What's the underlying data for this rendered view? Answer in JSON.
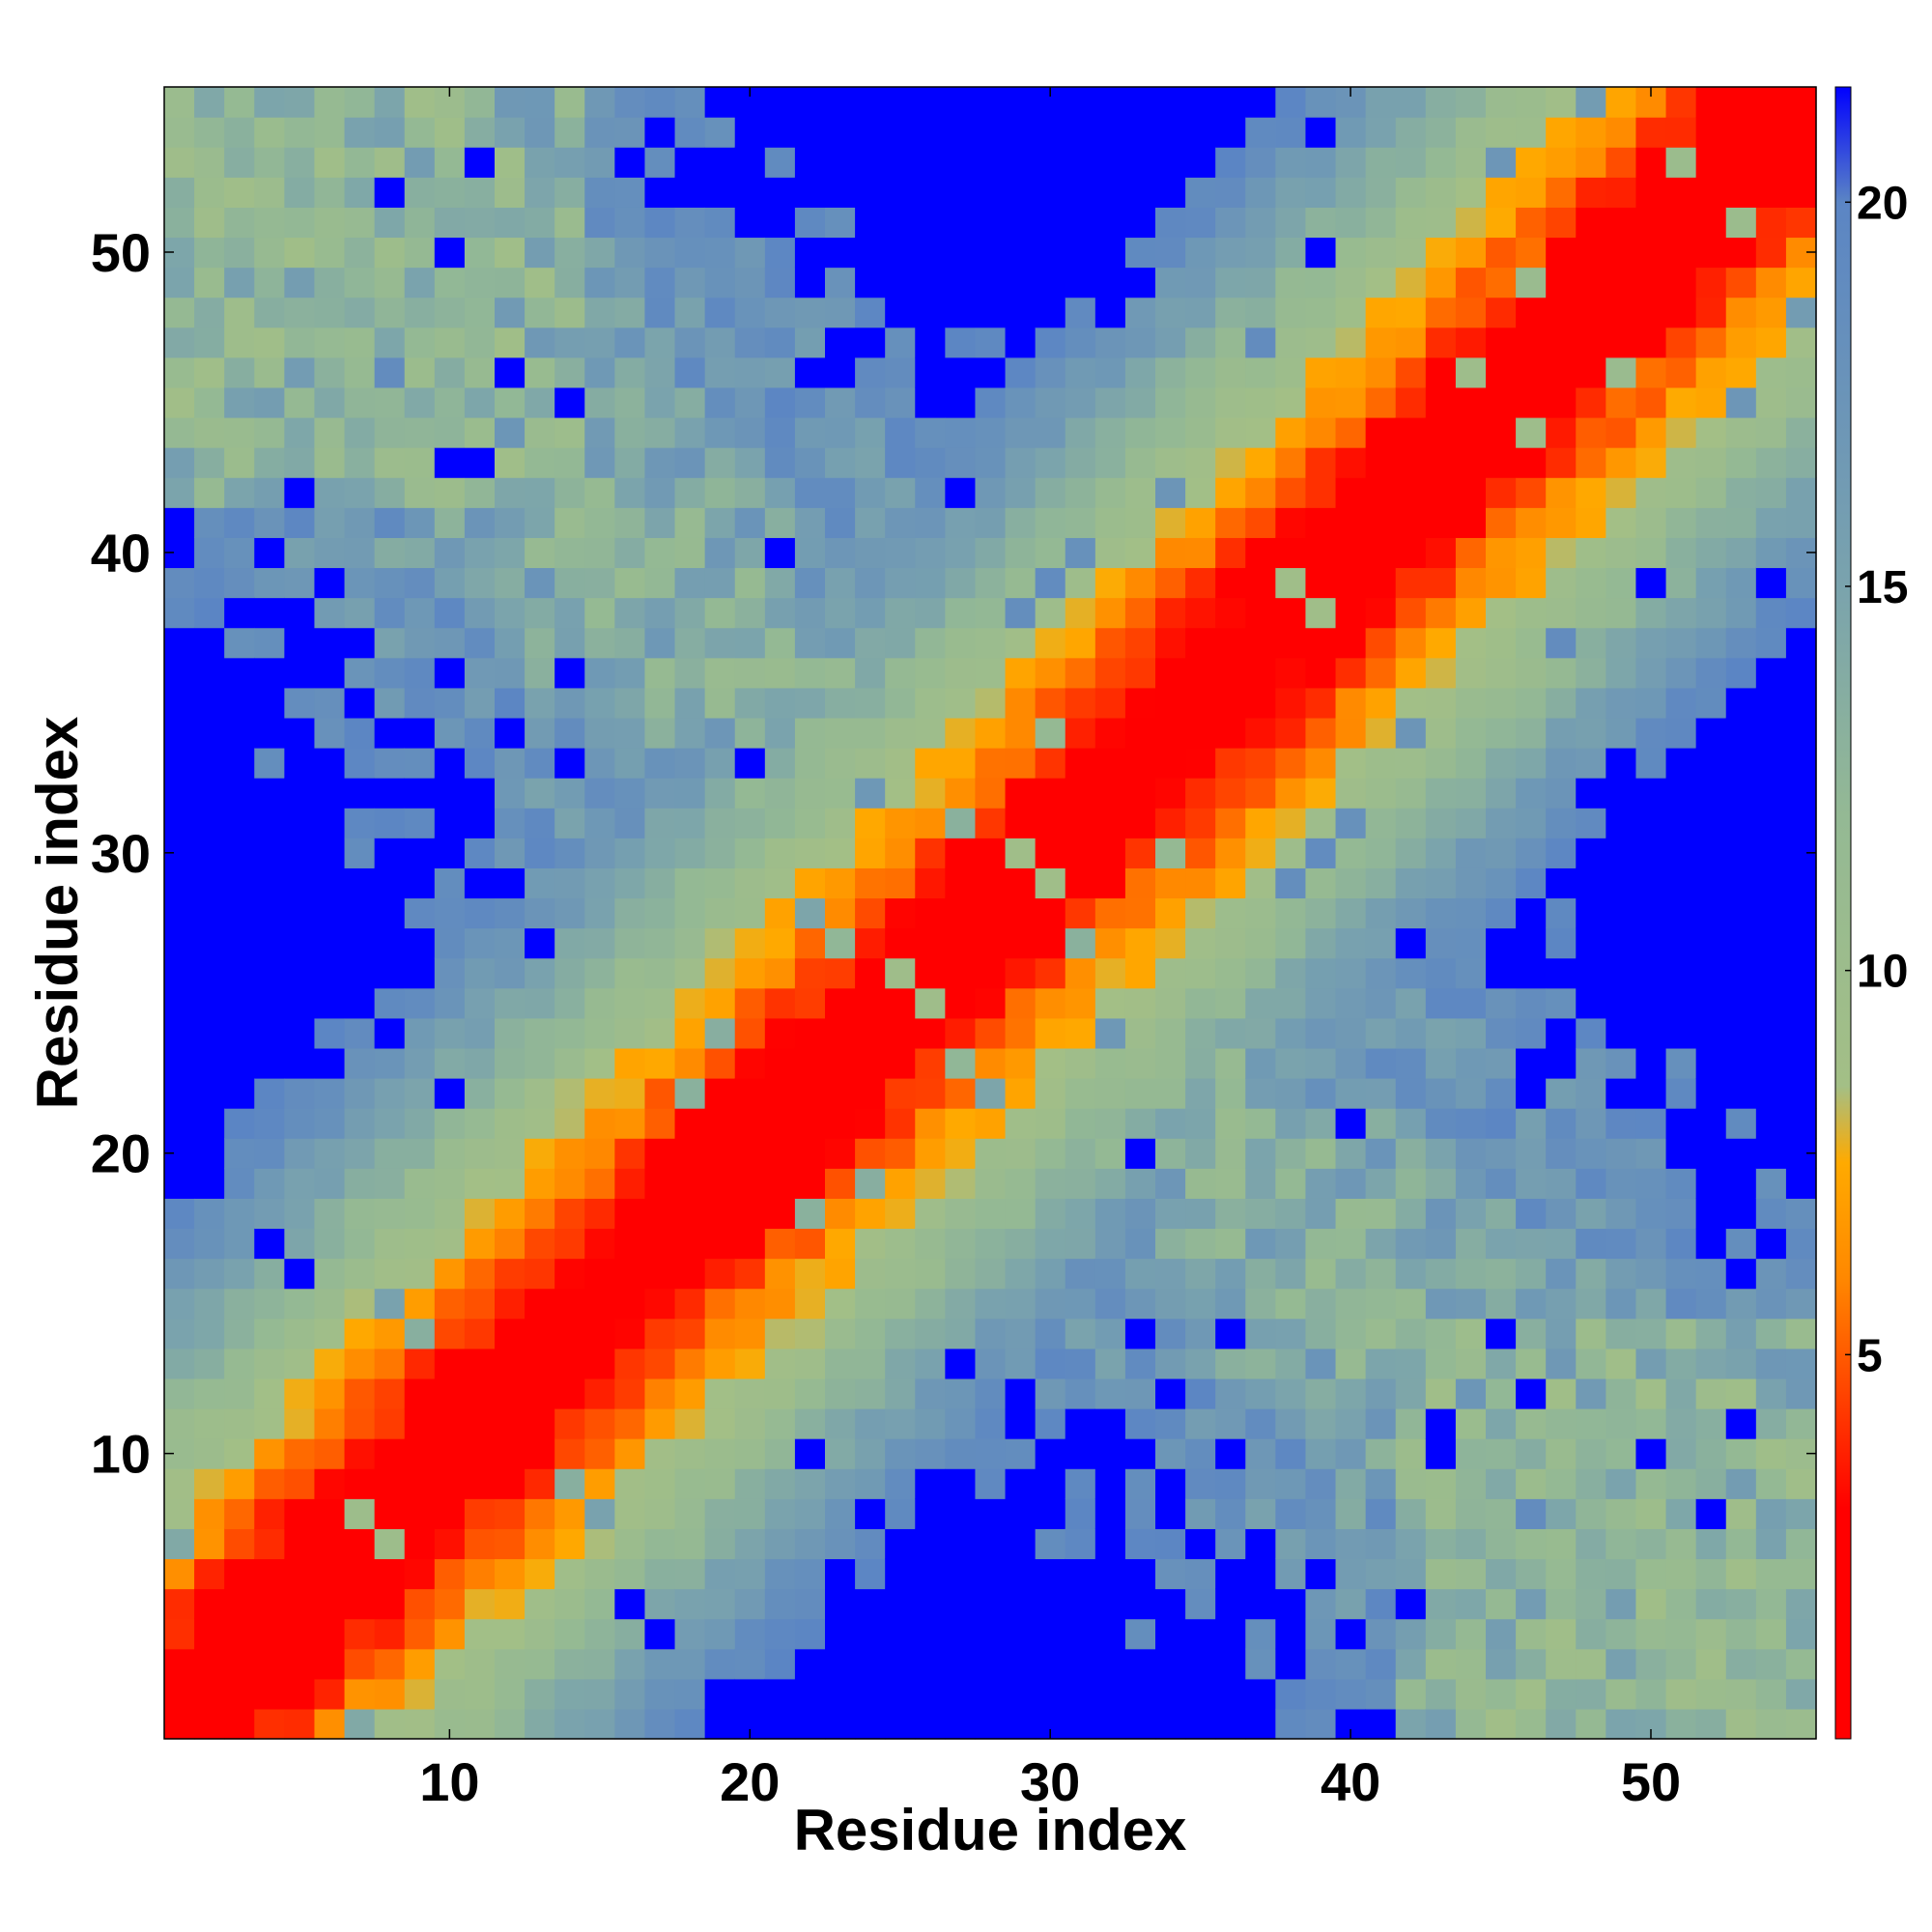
{
  "chart_data": {
    "type": "heatmap",
    "title": "",
    "xlabel": "Residue index",
    "ylabel": "Residue index",
    "n_residues": 55,
    "xlim": [
      0.5,
      55.5
    ],
    "ylim": [
      0.5,
      55.5
    ],
    "x_ticks": [
      10,
      20,
      30,
      40,
      50
    ],
    "y_ticks": [
      10,
      20,
      30,
      40,
      50
    ],
    "colorbar": {
      "ticks": [
        5,
        10,
        15,
        20
      ],
      "range": [
        0,
        21.5
      ],
      "cutoff": 20,
      "stops": [
        {
          "value": 0,
          "color": "#ff0000"
        },
        {
          "value": 3,
          "color": "#ff0000"
        },
        {
          "value": 4.5,
          "color": "#ff4400"
        },
        {
          "value": 6,
          "color": "#ff8800"
        },
        {
          "value": 7.5,
          "color": "#ffaa00"
        },
        {
          "value": 8.5,
          "color": "#a3bf86"
        },
        {
          "value": 12,
          "color": "#94b994"
        },
        {
          "value": 15,
          "color": "#7aa3ad"
        },
        {
          "value": 20,
          "color": "#5b85c4"
        },
        {
          "value": 21.5,
          "color": "#0000ff"
        }
      ]
    },
    "pattern": "symmetric distance matrix; 0 on diagonal rising away from it, values above 20 shown as blue background",
    "grid": false,
    "legend": "colorbar-right"
  }
}
